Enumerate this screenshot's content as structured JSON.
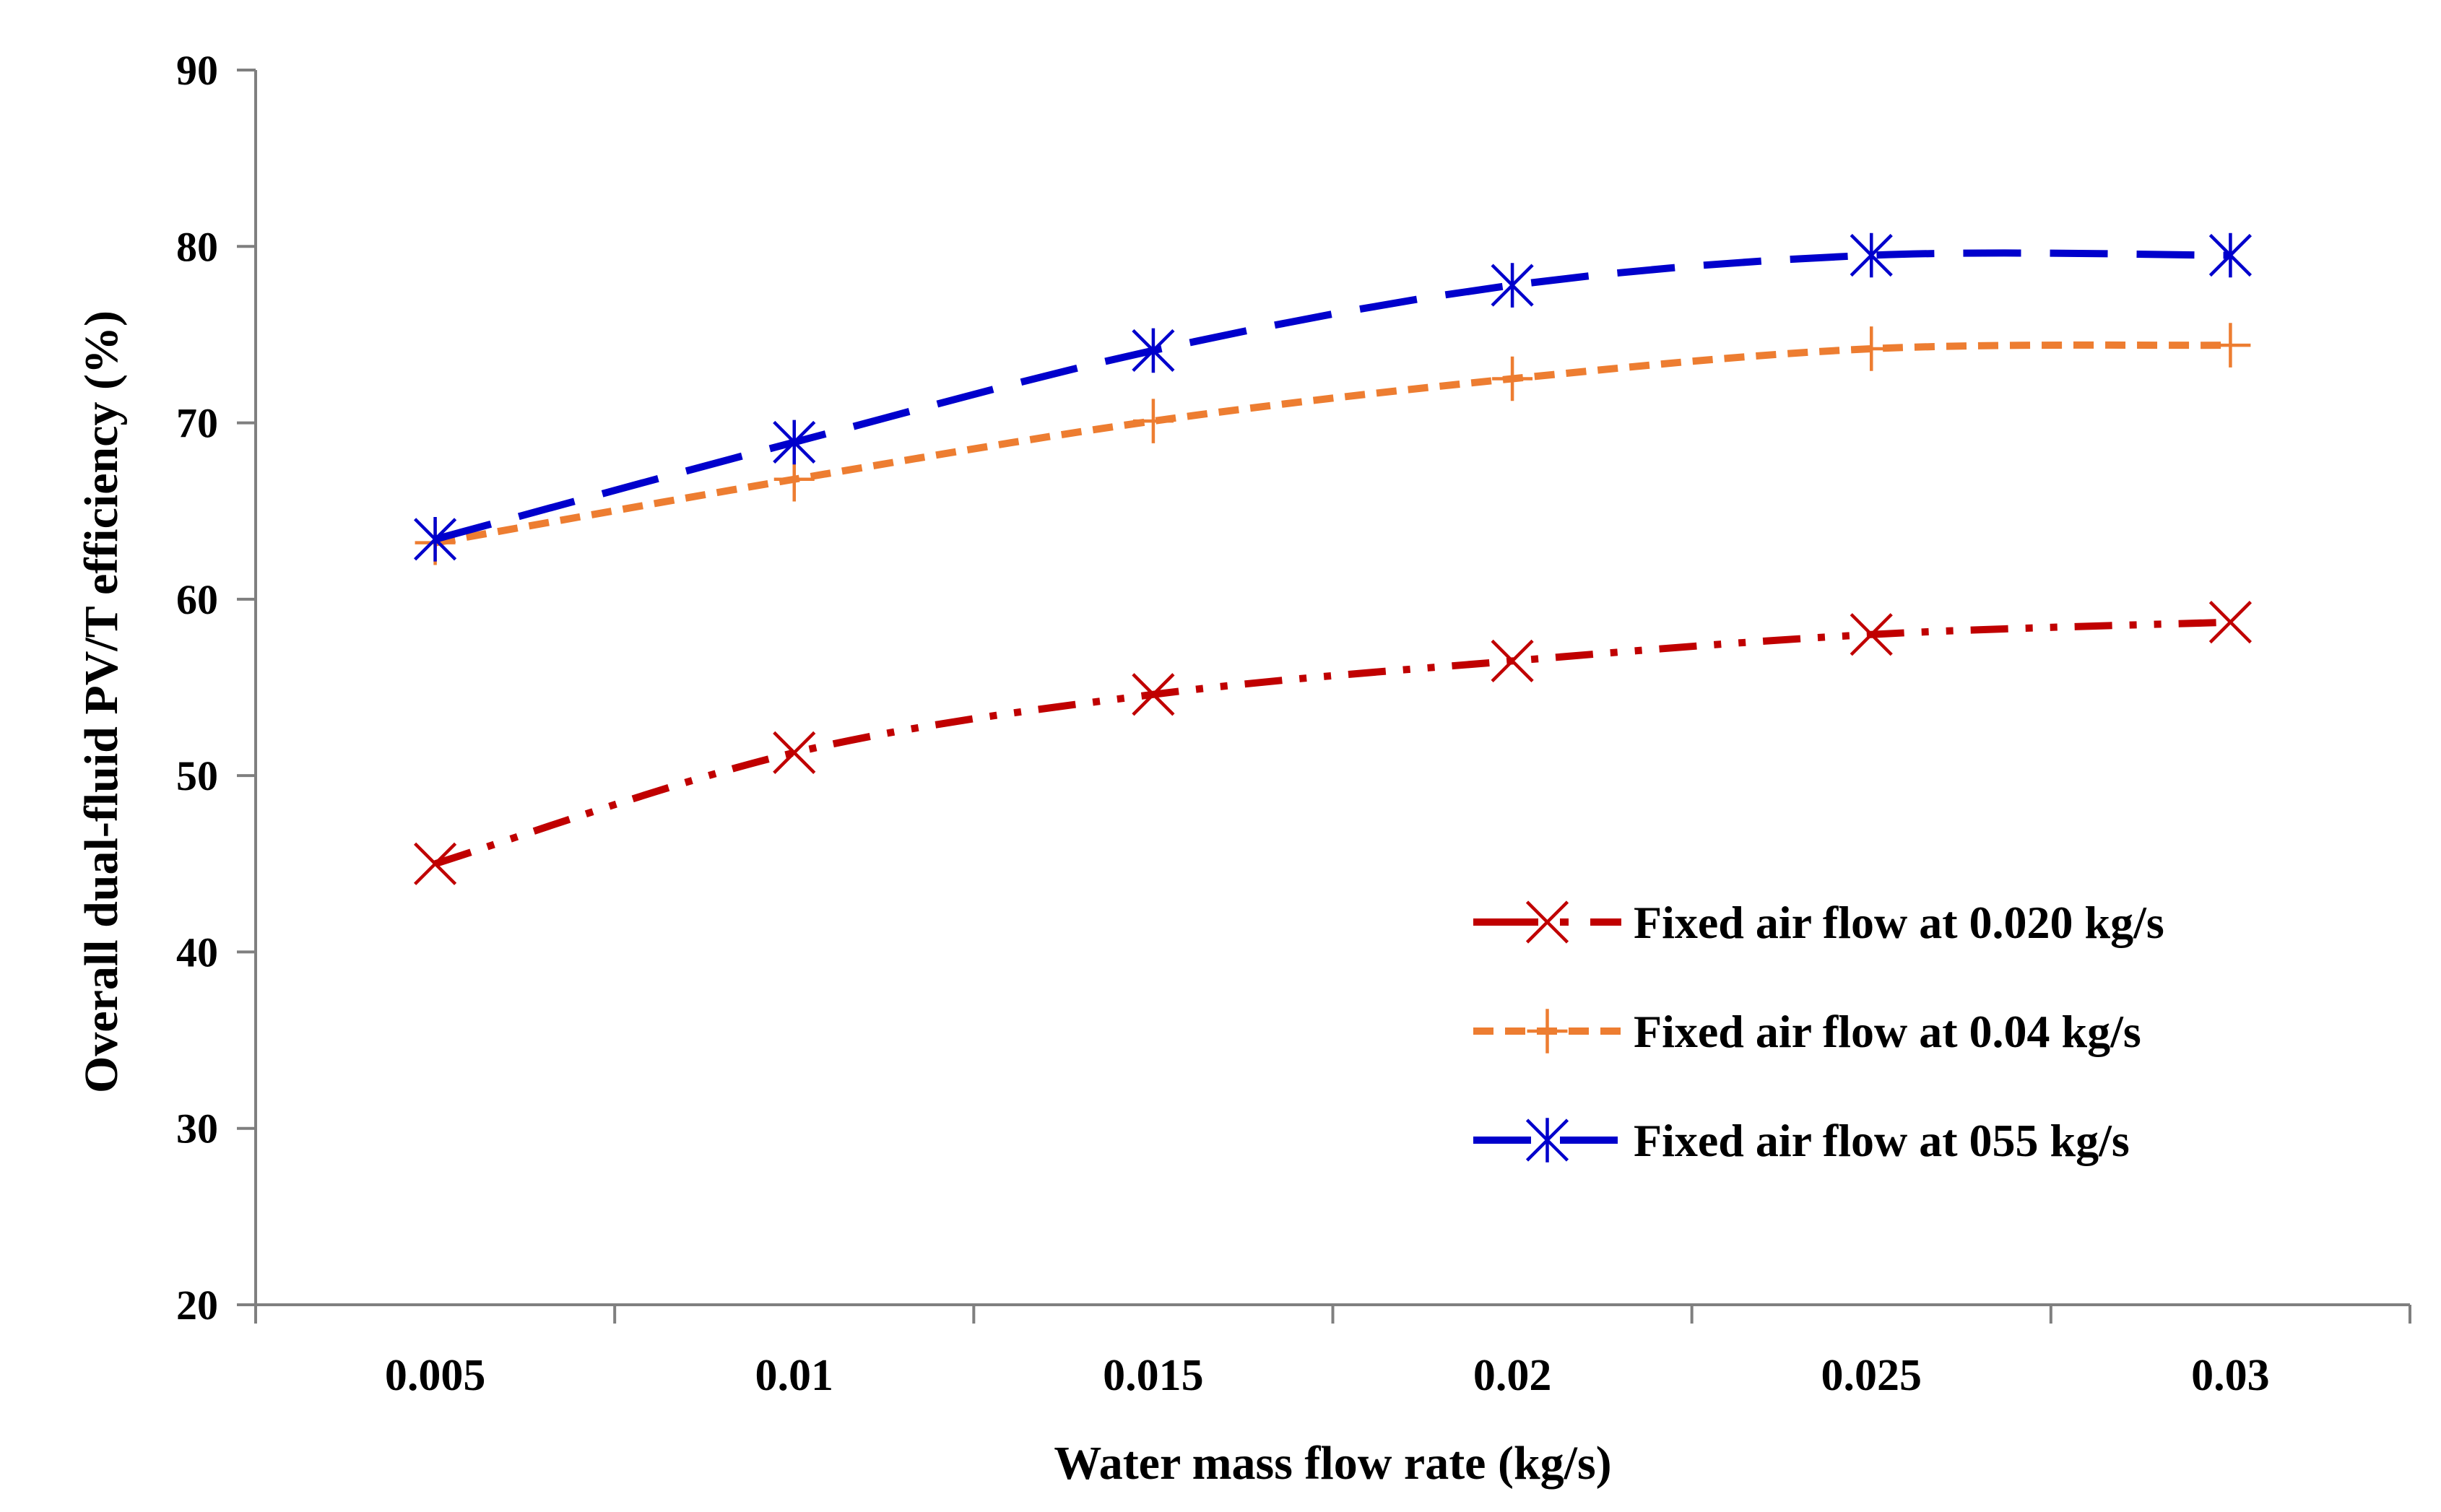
{
  "chart_data": {
    "type": "line",
    "title": "",
    "xlabel": "Water mass flow rate (kg/s)",
    "ylabel": "Overall dual-fluid PV/T efficiency (%)",
    "categories": [
      "0.005",
      "0.01",
      "0.015",
      "0.02",
      "0.025",
      "0.03"
    ],
    "ylim": [
      20,
      90
    ],
    "yticks": [
      20,
      30,
      40,
      50,
      60,
      70,
      80,
      90
    ],
    "grid": false,
    "legend_position": "bottom-right",
    "series": [
      {
        "name": "Fixed air flow at 0.020 kg/s",
        "color": "#c00000",
        "marker": "x",
        "dash": "dash-dot-dot",
        "values": [
          45.0,
          51.3,
          54.6,
          56.5,
          58.0,
          58.7
        ]
      },
      {
        "name": "Fixed air flow at 0.04 kg/s",
        "color": "#ed7d31",
        "marker": "plus",
        "dash": "short-dash",
        "values": [
          63.2,
          66.8,
          70.1,
          72.5,
          74.2,
          74.4
        ]
      },
      {
        "name": "Fixed air flow at 055 kg/s",
        "color": "#0000cc",
        "marker": "asterisk",
        "dash": "long-dash",
        "values": [
          63.4,
          68.9,
          74.1,
          77.8,
          79.5,
          79.5
        ]
      }
    ]
  }
}
